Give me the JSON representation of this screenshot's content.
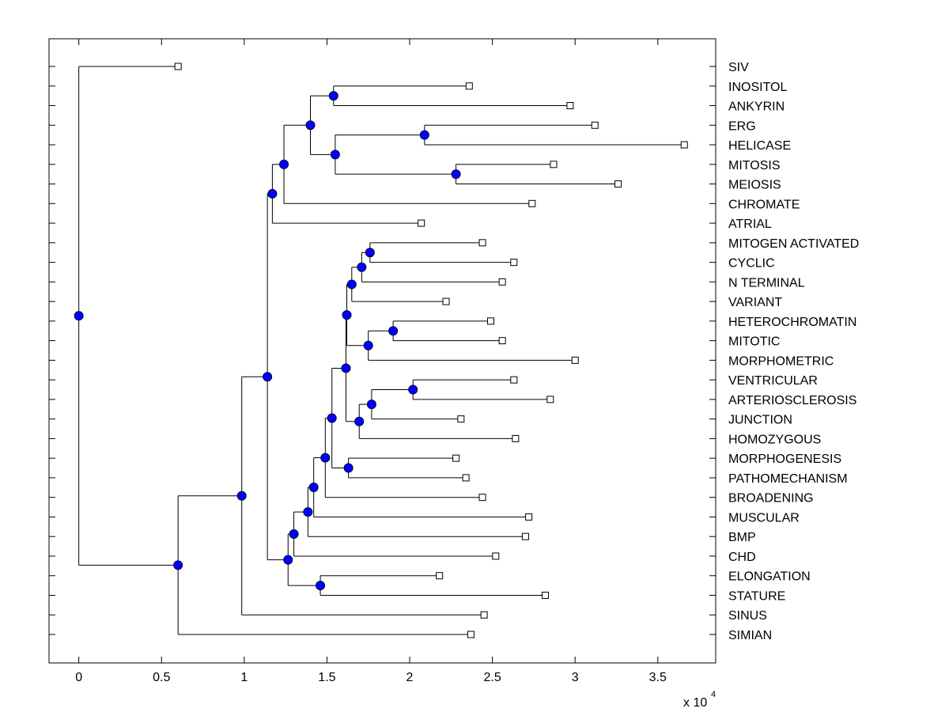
{
  "chart_data": {
    "type": "dendrogram",
    "title": "",
    "xlabel": "",
    "ylabel": "",
    "x_multiplier_label": "x 10",
    "x_multiplier_exponent": "4",
    "xlim": [
      -0.18,
      3.85
    ],
    "x_ticks": [
      0,
      0.5,
      1,
      1.5,
      2,
      2.5,
      3,
      3.5
    ],
    "x_tick_labels": [
      "0",
      "0.5",
      "1",
      "1.5",
      "2",
      "2.5",
      "3",
      "3.5"
    ],
    "grid": false,
    "box": true,
    "colors": {
      "line": "#000000",
      "node_fill": "#0000ff",
      "node_edge": "#000033",
      "leaf_fill": "#ffffff"
    },
    "leaves": [
      {
        "id": "SIV",
        "label": "SIV",
        "x": 0.6
      },
      {
        "id": "INOSITOL",
        "label": "INOSITOL",
        "x": 2.36
      },
      {
        "id": "ANKYRIN",
        "label": "ANKYRIN",
        "x": 2.97
      },
      {
        "id": "ERG",
        "label": "ERG",
        "x": 3.12
      },
      {
        "id": "HELICASE",
        "label": "HELICASE",
        "x": 3.66
      },
      {
        "id": "MITOSIS",
        "label": "MITOSIS",
        "x": 2.87
      },
      {
        "id": "MEIOSIS",
        "label": "MEIOSIS",
        "x": 3.26
      },
      {
        "id": "CHROMATE",
        "label": "CHROMATE",
        "x": 2.74
      },
      {
        "id": "ATRIAL",
        "label": "ATRIAL",
        "x": 2.07
      },
      {
        "id": "MITOGEN_ACTIVATED",
        "label": "MITOGEN ACTIVATED",
        "x": 2.44
      },
      {
        "id": "CYCLIC",
        "label": "CYCLIC",
        "x": 2.63
      },
      {
        "id": "N_TERMINAL",
        "label": "N TERMINAL",
        "x": 2.56
      },
      {
        "id": "VARIANT",
        "label": "VARIANT",
        "x": 2.22
      },
      {
        "id": "HETEROCHROMATIN",
        "label": "HETEROCHROMATIN",
        "x": 2.49
      },
      {
        "id": "MITOTIC",
        "label": "MITOTIC",
        "x": 2.56
      },
      {
        "id": "MORPHOMETRIC",
        "label": "MORPHOMETRIC",
        "x": 3.0
      },
      {
        "id": "VENTRICULAR",
        "label": "VENTRICULAR",
        "x": 2.63
      },
      {
        "id": "ARTERIOSCLEROSIS",
        "label": "ARTERIOSCLEROSIS",
        "x": 2.85
      },
      {
        "id": "JUNCTION",
        "label": "JUNCTION",
        "x": 2.31
      },
      {
        "id": "HOMOZYGOUS",
        "label": "HOMOZYGOUS",
        "x": 2.64
      },
      {
        "id": "MORPHOGENESIS",
        "label": "MORPHOGENESIS",
        "x": 2.28
      },
      {
        "id": "PATHOMECHANISM",
        "label": "PATHOMECHANISM",
        "x": 2.34
      },
      {
        "id": "BROADENING",
        "label": "BROADENING",
        "x": 2.44
      },
      {
        "id": "MUSCULAR",
        "label": "MUSCULAR",
        "x": 2.72
      },
      {
        "id": "BMP",
        "label": "BMP",
        "x": 2.7
      },
      {
        "id": "CHD",
        "label": "CHD",
        "x": 2.52
      },
      {
        "id": "ELONGATION",
        "label": "ELONGATION",
        "x": 2.18
      },
      {
        "id": "STATURE",
        "label": "STATURE",
        "x": 2.82
      },
      {
        "id": "SINUS",
        "label": "SINUS",
        "x": 2.45
      },
      {
        "id": "SIMIAN",
        "label": "SIMIAN",
        "x": 2.37
      }
    ],
    "nodes": [
      {
        "id": "n_root",
        "x": 0.0,
        "children": [
          "SIV",
          "n_a"
        ]
      },
      {
        "id": "n_a",
        "x": 0.6,
        "children": [
          "n_b",
          "SIMIAN"
        ]
      },
      {
        "id": "n_b",
        "x": 0.985,
        "children": [
          "n_c",
          "SINUS"
        ]
      },
      {
        "id": "n_c",
        "x": 1.14,
        "children": [
          "n_up1",
          "n_lo1"
        ]
      },
      {
        "id": "n_up1",
        "x": 1.17,
        "children": [
          "n_up2",
          "ATRIAL"
        ]
      },
      {
        "id": "n_up2",
        "x": 1.24,
        "children": [
          "n_up3",
          "CHROMATE"
        ]
      },
      {
        "id": "n_up3",
        "x": 1.4,
        "children": [
          "n_inos",
          "n_up4"
        ]
      },
      {
        "id": "n_inos",
        "x": 1.54,
        "children": [
          "INOSITOL",
          "ANKYRIN"
        ]
      },
      {
        "id": "n_up4",
        "x": 1.55,
        "children": [
          "n_erg",
          "n_mit"
        ]
      },
      {
        "id": "n_erg",
        "x": 2.09,
        "children": [
          "ERG",
          "HELICASE"
        ]
      },
      {
        "id": "n_mit",
        "x": 2.28,
        "children": [
          "MITOSIS",
          "MEIOSIS"
        ]
      },
      {
        "id": "n_lo1",
        "x": 1.265,
        "children": [
          "n_lo2",
          "n_elong"
        ]
      },
      {
        "id": "n_elong",
        "x": 1.46,
        "children": [
          "ELONGATION",
          "STATURE"
        ]
      },
      {
        "id": "n_lo2",
        "x": 1.3,
        "children": [
          "n_lo3",
          "CHD"
        ]
      },
      {
        "id": "n_lo3",
        "x": 1.385,
        "children": [
          "n_lo4",
          "BMP"
        ]
      },
      {
        "id": "n_lo4",
        "x": 1.42,
        "children": [
          "n_lo5",
          "MUSCULAR"
        ]
      },
      {
        "id": "n_lo5",
        "x": 1.49,
        "children": [
          "n_lo6",
          "BROADENING"
        ]
      },
      {
        "id": "n_lo6",
        "x": 1.53,
        "children": [
          "n_lo7",
          "n_morph"
        ]
      },
      {
        "id": "n_morph",
        "x": 1.63,
        "children": [
          "MORPHOGENESIS",
          "PATHOMECHANISM"
        ]
      },
      {
        "id": "n_lo7",
        "x": 1.615,
        "children": [
          "n_lo8",
          "n_lo9"
        ]
      },
      {
        "id": "n_lo9",
        "x": 1.695,
        "children": [
          "n_lo10",
          "HOMOZYGOUS"
        ]
      },
      {
        "id": "n_lo10",
        "x": 1.77,
        "children": [
          "n_vent",
          "JUNCTION"
        ]
      },
      {
        "id": "n_vent",
        "x": 2.02,
        "children": [
          "VENTRICULAR",
          "ARTERIOSCLEROSIS"
        ]
      },
      {
        "id": "n_lo8",
        "x": 1.62,
        "children": [
          "n_lo11",
          "n_lo12"
        ]
      },
      {
        "id": "n_lo12",
        "x": 1.75,
        "children": [
          "n_het",
          "MORPHOMETRIC"
        ]
      },
      {
        "id": "n_het",
        "x": 1.9,
        "children": [
          "HETEROCHROMATIN",
          "MITOTIC"
        ]
      },
      {
        "id": "n_lo11",
        "x": 1.65,
        "children": [
          "n_lo13",
          "VARIANT"
        ]
      },
      {
        "id": "n_lo13",
        "x": 1.71,
        "children": [
          "n_cyc",
          "N_TERMINAL"
        ]
      },
      {
        "id": "n_cyc",
        "x": 1.76,
        "children": [
          "MITOGEN_ACTIVATED",
          "CYCLIC"
        ]
      }
    ]
  }
}
